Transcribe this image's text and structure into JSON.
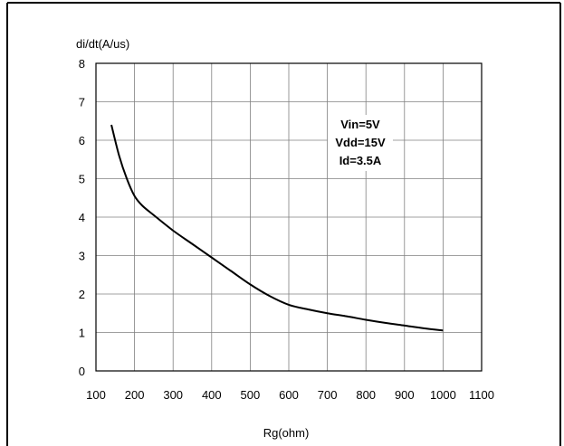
{
  "chart_data": {
    "type": "line",
    "title": "",
    "ylabel": "di/dt(A/us)",
    "xlabel": "Rg(ohm)",
    "xlim": [
      100,
      1100
    ],
    "ylim": [
      0,
      8
    ],
    "x_ticks": [
      100,
      200,
      300,
      400,
      500,
      600,
      700,
      800,
      900,
      1000,
      1100
    ],
    "y_ticks": [
      0,
      1,
      2,
      3,
      4,
      5,
      6,
      7,
      8
    ],
    "grid": true,
    "annotations": [
      "Vin=5V",
      "Vdd=15V",
      "Id=3.5A"
    ],
    "series": [
      {
        "x": [
          140,
          160,
          180,
          200,
          220,
          250,
          300,
          350,
          400,
          450,
          500,
          550,
          600,
          650,
          700,
          750,
          800,
          850,
          900,
          950,
          1000
        ],
        "y": [
          6.4,
          5.6,
          5.0,
          4.55,
          4.3,
          4.05,
          3.65,
          3.3,
          2.95,
          2.6,
          2.25,
          1.95,
          1.72,
          1.6,
          1.5,
          1.42,
          1.33,
          1.25,
          1.18,
          1.11,
          1.05
        ]
      }
    ],
    "colors": {
      "line": "#000000",
      "grid": "#808080",
      "frame": "#000000"
    }
  }
}
